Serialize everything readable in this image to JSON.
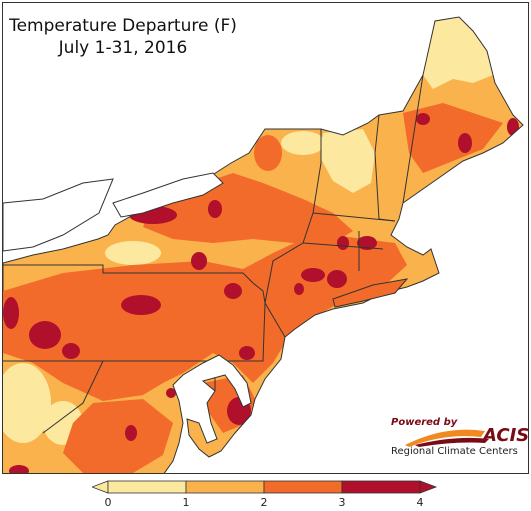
{
  "title": {
    "line1": "Temperature Departure (F)",
    "line2": "July 1-31, 2016"
  },
  "legend": {
    "labels": [
      "0",
      "1",
      "2",
      "3",
      "4"
    ],
    "bins": [
      {
        "range": "0-1",
        "color": "#fde8a0"
      },
      {
        "range": "1-2",
        "color": "#f9b24c"
      },
      {
        "range": "2-3",
        "color": "#f26b2a"
      },
      {
        "range": "3-4",
        "color": "#b0102b"
      }
    ],
    "under_color": "#fde8a0",
    "over_color": "#b0102b"
  },
  "logo": {
    "powered_by": "Powered by",
    "name": "ACIS",
    "subtitle": "Regional Climate Centers"
  },
  "colors": {
    "lakes": "#ffffff",
    "ocean": "#ffffff",
    "state_borders": "#333333",
    "county_borders": "#b58a60"
  }
}
